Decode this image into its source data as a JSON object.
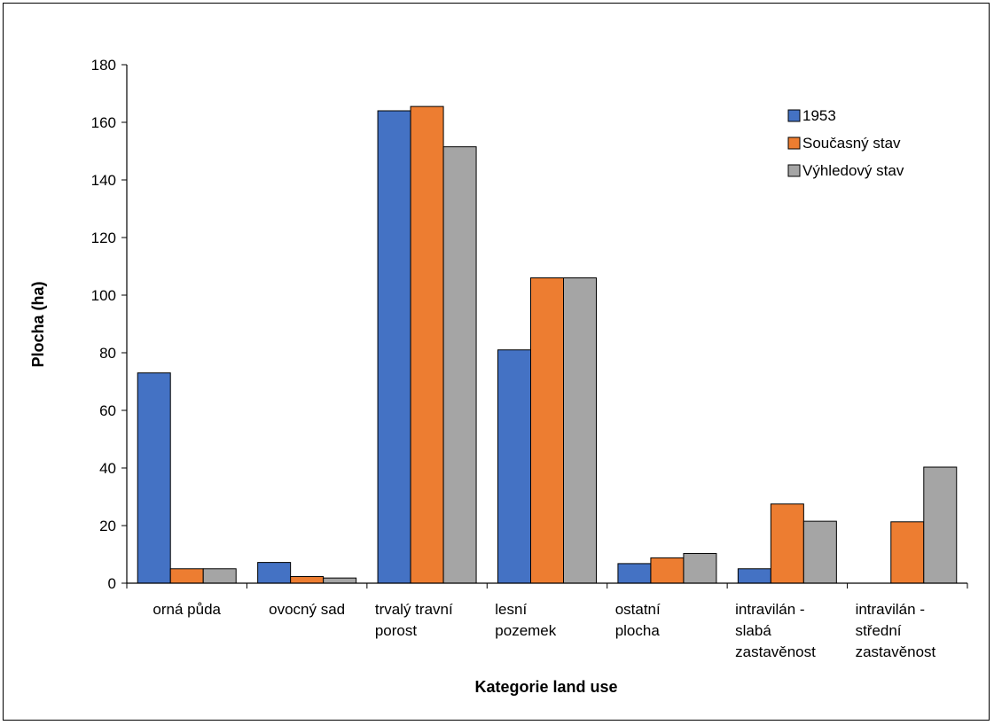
{
  "chart_data": {
    "type": "bar",
    "title": "",
    "xlabel": "Kategorie land use",
    "ylabel": "Plocha (ha)",
    "ylim": [
      0,
      180
    ],
    "yticks": [
      0,
      20,
      40,
      60,
      80,
      100,
      120,
      140,
      160,
      180
    ],
    "grid": false,
    "legend_position": "top-right",
    "categories": [
      [
        "orná půda"
      ],
      [
        "ovocný sad"
      ],
      [
        "trvalý travní",
        "porost"
      ],
      [
        "lesní",
        "pozemek"
      ],
      [
        "ostatní",
        "plocha"
      ],
      [
        "intravilán -",
        "slabá",
        "zastavěnost"
      ],
      [
        "intravilán -",
        "střední",
        "zastavěnost"
      ]
    ],
    "series": [
      {
        "name": "1953",
        "color": "#4472C4",
        "values": [
          73,
          7.2,
          164,
          81,
          6.8,
          5,
          null
        ]
      },
      {
        "name": "Současný stav",
        "color": "#ED7D31",
        "values": [
          5,
          2.3,
          165.5,
          106,
          8.8,
          27.5,
          21.3
        ]
      },
      {
        "name": "Výhledový stav",
        "color": "#A5A5A5",
        "values": [
          5,
          1.8,
          151.5,
          106,
          10.3,
          21.5,
          40.3
        ]
      }
    ]
  }
}
